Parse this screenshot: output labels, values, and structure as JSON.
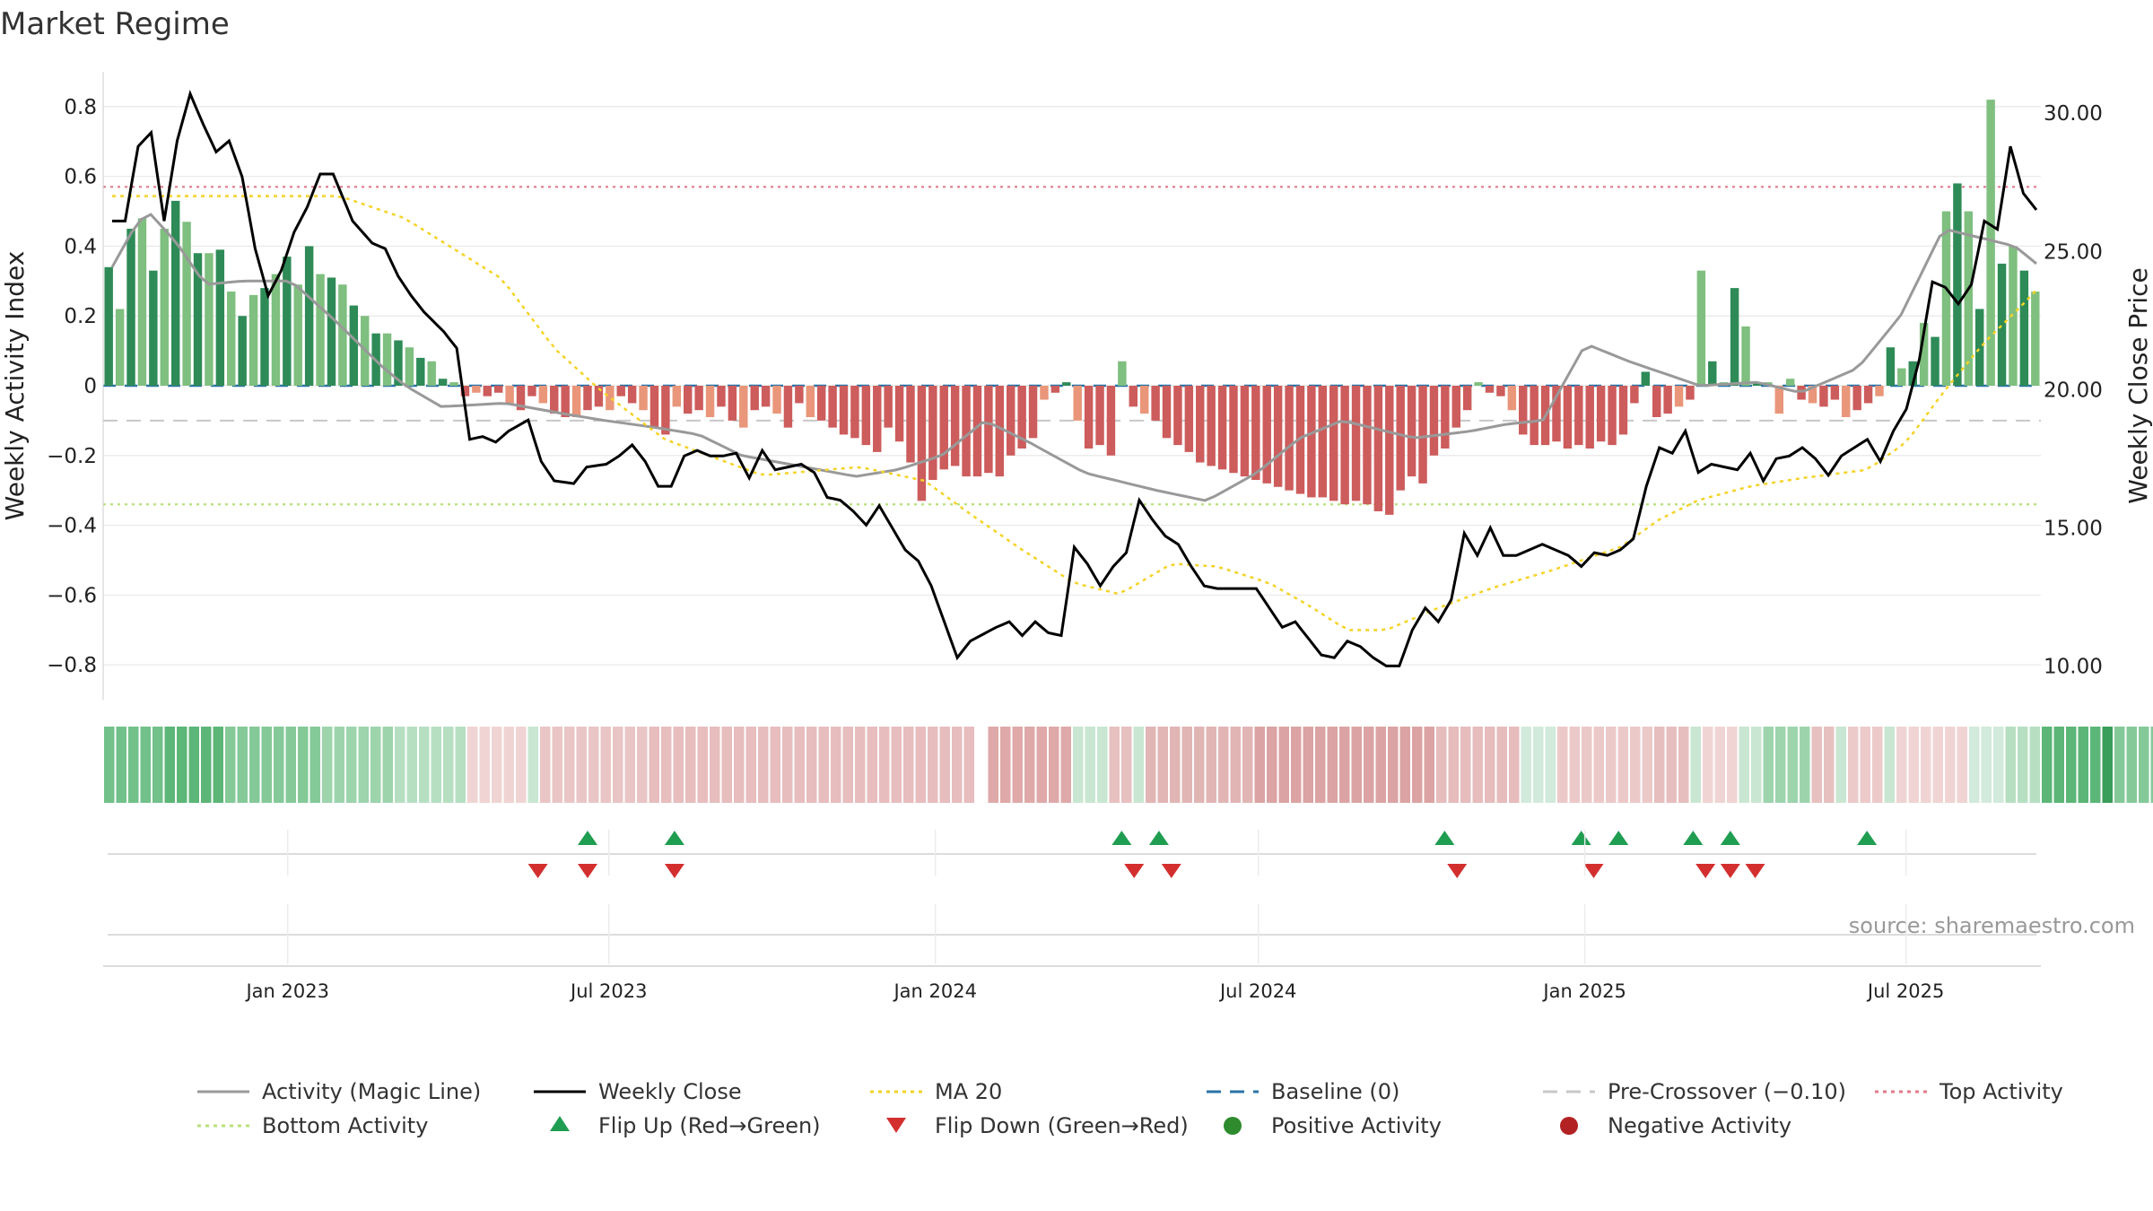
{
  "chart_data": {
    "type": "bar",
    "title": "Market Regime",
    "ylabel_left": "Weekly Activity Index",
    "ylabel_right": "Weekly Close Price",
    "source": "source: sharemaestro.com",
    "ylim_left": [
      -0.9,
      0.9
    ],
    "ylim_right": [
      8.78,
      31.5
    ],
    "left_ticks": [
      "0.8",
      "0.6",
      "0.4",
      "0.2",
      "0",
      "−0.2",
      "−0.4",
      "−0.6",
      "−0.8"
    ],
    "left_tick_values": [
      0.8,
      0.6,
      0.4,
      0.2,
      0,
      -0.2,
      -0.4,
      -0.6,
      -0.8
    ],
    "right_ticks": [
      "30.00",
      "25.00",
      "20.00",
      "15.00",
      "10.00"
    ],
    "right_tick_values": [
      30,
      25,
      20,
      15,
      10
    ],
    "x_range": [
      "2022-09-19",
      "2025-09-15"
    ],
    "date_ticks": [
      {
        "label": "Jan 2023",
        "date": "2023-01-01"
      },
      {
        "label": "Jul 2023",
        "date": "2023-07-01"
      },
      {
        "label": "Jan 2024",
        "date": "2024-01-01"
      },
      {
        "label": "Jul 2024",
        "date": "2024-07-01"
      },
      {
        "label": "Jan 2025",
        "date": "2025-01-01"
      },
      {
        "label": "Jul 2025",
        "date": "2025-07-01"
      }
    ],
    "top_activity": 0.57,
    "bottom_activity": -0.34,
    "pre_crossover": -0.1,
    "baseline": 0,
    "activity_keypoints": [
      [
        0,
        0.34
      ],
      [
        3,
        0.45
      ],
      [
        5,
        0.5
      ],
      [
        9,
        0.41
      ],
      [
        13,
        0.29
      ],
      [
        18,
        0.3
      ],
      [
        25,
        0.3
      ],
      [
        31,
        0.19
      ],
      [
        38,
        0.05
      ],
      [
        41,
        0.0
      ],
      [
        46,
        -0.06
      ],
      [
        55,
        -0.05
      ],
      [
        63,
        -0.08
      ],
      [
        69,
        -0.1
      ],
      [
        76,
        -0.12
      ],
      [
        82,
        -0.14
      ],
      [
        88,
        -0.2
      ],
      [
        96,
        -0.23
      ],
      [
        104,
        -0.26
      ],
      [
        110,
        -0.24
      ],
      [
        116,
        -0.2
      ],
      [
        122,
        -0.1
      ],
      [
        128,
        -0.16
      ],
      [
        136,
        -0.25
      ],
      [
        146,
        -0.3
      ],
      [
        153,
        -0.33
      ],
      [
        160,
        -0.25
      ],
      [
        166,
        -0.15
      ],
      [
        172,
        -0.1
      ],
      [
        176,
        -0.12
      ],
      [
        182,
        -0.15
      ],
      [
        190,
        -0.13
      ],
      [
        195,
        -0.11
      ],
      [
        200,
        -0.1
      ],
      [
        206,
        0.12
      ],
      [
        212,
        0.07
      ],
      [
        222,
        0.0
      ],
      [
        230,
        0.01
      ],
      [
        236,
        -0.02
      ],
      [
        244,
        0.05
      ],
      [
        250,
        0.2
      ],
      [
        256,
        0.45
      ],
      [
        266,
        0.4
      ],
      [
        269,
        0.35
      ]
    ],
    "close_keypoints": [
      [
        0,
        26.1
      ],
      [
        2,
        26.1
      ],
      [
        4,
        28.8
      ],
      [
        6,
        29.3
      ],
      [
        8,
        26.1
      ],
      [
        10,
        29
      ],
      [
        12,
        30.7
      ],
      [
        14,
        29.6
      ],
      [
        16,
        28.6
      ],
      [
        18,
        29
      ],
      [
        20,
        27.7
      ],
      [
        22,
        25.1
      ],
      [
        24,
        23.4
      ],
      [
        26,
        24.3
      ],
      [
        28,
        25.7
      ],
      [
        30,
        26.6
      ],
      [
        32,
        27.8
      ],
      [
        34,
        27.8
      ],
      [
        37,
        26.1
      ],
      [
        40,
        25.3
      ],
      [
        42,
        25.1
      ],
      [
        44,
        24.1
      ],
      [
        46,
        23.4
      ],
      [
        48,
        22.8
      ],
      [
        51,
        22.1
      ],
      [
        53,
        21.5
      ],
      [
        55,
        18.2
      ],
      [
        57,
        18.3
      ],
      [
        59,
        18.1
      ],
      [
        61,
        18.5
      ],
      [
        64,
        18.9
      ],
      [
        66,
        17.4
      ],
      [
        68,
        16.7
      ],
      [
        71,
        16.6
      ],
      [
        73,
        17.2
      ],
      [
        76,
        17.3
      ],
      [
        78,
        17.6
      ],
      [
        80,
        18
      ],
      [
        82,
        17.4
      ],
      [
        84,
        16.5
      ],
      [
        86,
        16.5
      ],
      [
        88,
        17.6
      ],
      [
        90,
        17.8
      ],
      [
        92,
        17.6
      ],
      [
        94,
        17.6
      ],
      [
        96,
        17.7
      ],
      [
        98,
        16.8
      ],
      [
        100,
        17.8
      ],
      [
        102,
        17.1
      ],
      [
        104,
        17.2
      ],
      [
        106,
        17.3
      ],
      [
        108,
        17
      ],
      [
        110,
        16.1
      ],
      [
        112,
        16
      ],
      [
        114,
        15.6
      ],
      [
        116,
        15.1
      ],
      [
        118,
        15.8
      ],
      [
        120,
        15
      ],
      [
        122,
        14.2
      ],
      [
        124,
        13.8
      ],
      [
        126,
        12.9
      ],
      [
        128,
        11.6
      ],
      [
        130,
        10.3
      ],
      [
        132,
        10.9
      ],
      [
        136,
        11.4
      ],
      [
        138,
        11.6
      ],
      [
        140,
        11.1
      ],
      [
        142,
        11.6
      ],
      [
        144,
        11.2
      ],
      [
        146,
        11.1
      ],
      [
        148,
        14.3
      ],
      [
        150,
        13.7
      ],
      [
        152,
        12.9
      ],
      [
        154,
        13.6
      ],
      [
        156,
        14.1
      ],
      [
        158,
        16
      ],
      [
        160,
        15.3
      ],
      [
        162,
        14.7
      ],
      [
        164,
        14.4
      ],
      [
        166,
        13.6
      ],
      [
        168,
        12.9
      ],
      [
        170,
        12.8
      ],
      [
        174,
        12.8
      ],
      [
        176,
        12.8
      ],
      [
        178,
        12.1
      ],
      [
        180,
        11.4
      ],
      [
        182,
        11.6
      ],
      [
        184,
        11
      ],
      [
        186,
        10.4
      ],
      [
        188,
        10.3
      ],
      [
        190,
        10.9
      ],
      [
        192,
        10.7
      ],
      [
        194,
        10.3
      ],
      [
        196,
        10
      ],
      [
        198,
        10
      ],
      [
        200,
        11.3
      ],
      [
        202,
        12.1
      ],
      [
        204,
        11.6
      ],
      [
        206,
        12.4
      ],
      [
        208,
        14.8
      ],
      [
        210,
        14
      ],
      [
        212,
        15
      ],
      [
        214,
        14
      ],
      [
        216,
        14
      ],
      [
        218,
        14.2
      ],
      [
        220,
        14.4
      ],
      [
        222,
        14.2
      ],
      [
        224,
        14
      ],
      [
        226,
        13.6
      ],
      [
        228,
        14.1
      ],
      [
        230,
        14
      ],
      [
        232,
        14.2
      ],
      [
        234,
        14.6
      ],
      [
        236,
        16.5
      ],
      [
        238,
        17.9
      ],
      [
        240,
        17.7
      ],
      [
        242,
        18.5
      ],
      [
        244,
        17
      ],
      [
        246,
        17.3
      ],
      [
        248,
        17.2
      ],
      [
        250,
        17.1
      ],
      [
        252,
        17.7
      ],
      [
        254,
        16.7
      ],
      [
        256,
        17.5
      ],
      [
        258,
        17.6
      ],
      [
        260,
        17.9
      ],
      [
        262,
        17.5
      ],
      [
        264,
        16.9
      ],
      [
        266,
        17.6
      ],
      [
        268,
        17.9
      ],
      [
        270,
        18.2
      ],
      [
        272,
        17.4
      ],
      [
        274,
        18.5
      ],
      [
        276,
        19.3
      ],
      [
        278,
        21.1
      ],
      [
        280,
        23.9
      ],
      [
        282,
        23.7
      ],
      [
        284,
        23.1
      ],
      [
        286,
        23.8
      ],
      [
        288,
        26.1
      ],
      [
        290,
        25.8
      ],
      [
        292,
        28.8
      ],
      [
        294,
        27.1
      ],
      [
        296,
        26.5
      ]
    ],
    "ma20_keypoints": [
      [
        0,
        27.0
      ],
      [
        20,
        27.0
      ],
      [
        35,
        27.0
      ],
      [
        45,
        26.2
      ],
      [
        60,
        24.0
      ],
      [
        68,
        21.5
      ],
      [
        75,
        20.0
      ],
      [
        85,
        18.2
      ],
      [
        100,
        16.9
      ],
      [
        115,
        17.2
      ],
      [
        125,
        16.7
      ],
      [
        132,
        15.5
      ],
      [
        140,
        14.2
      ],
      [
        148,
        13.0
      ],
      [
        155,
        12.6
      ],
      [
        163,
        13.7
      ],
      [
        170,
        13.6
      ],
      [
        178,
        13.0
      ],
      [
        184,
        12.2
      ],
      [
        190,
        11.3
      ],
      [
        196,
        11.3
      ],
      [
        204,
        12.1
      ],
      [
        212,
        12.8
      ],
      [
        222,
        13.5
      ],
      [
        232,
        14.3
      ],
      [
        238,
        15.3
      ],
      [
        244,
        16.0
      ],
      [
        252,
        16.5
      ],
      [
        260,
        16.8
      ],
      [
        270,
        17.1
      ],
      [
        276,
        18.1
      ],
      [
        282,
        20.0
      ],
      [
        288,
        21.7
      ],
      [
        294,
        23.1
      ],
      [
        296,
        23.6
      ]
    ],
    "activity": [
      0.34,
      0.22,
      0.45,
      0.48,
      0.33,
      0.45,
      0.53,
      0.47,
      0.38,
      0.38,
      0.39,
      0.27,
      0.2,
      0.26,
      0.28,
      0.32,
      0.37,
      0.29,
      0.4,
      0.32,
      0.31,
      0.29,
      0.23,
      0.2,
      0.15,
      0.15,
      0.13,
      0.11,
      0.08,
      0.07,
      0.02,
      0.01,
      -0.03,
      -0.02,
      -0.03,
      -0.02,
      -0.05,
      -0.07,
      -0.03,
      -0.05,
      -0.08,
      -0.09,
      -0.09,
      -0.07,
      -0.06,
      -0.07,
      -0.03,
      -0.05,
      -0.07,
      -0.12,
      -0.14,
      -0.06,
      -0.08,
      -0.07,
      -0.09,
      -0.06,
      -0.1,
      -0.12,
      -0.07,
      -0.06,
      -0.08,
      -0.12,
      -0.05,
      -0.09,
      -0.1,
      -0.12,
      -0.14,
      -0.15,
      -0.17,
      -0.19,
      -0.12,
      -0.16,
      -0.22,
      -0.33,
      -0.27,
      -0.24,
      -0.23,
      -0.26,
      -0.26,
      -0.25,
      -0.26,
      -0.2,
      -0.18,
      -0.15,
      -0.04,
      -0.02,
      0.01,
      -0.1,
      -0.18,
      -0.17,
      -0.2,
      0.07,
      -0.06,
      -0.08,
      -0.1,
      -0.15,
      -0.17,
      -0.19,
      -0.22,
      -0.23,
      -0.24,
      -0.25,
      -0.26,
      -0.27,
      -0.28,
      -0.29,
      -0.3,
      -0.31,
      -0.32,
      -0.32,
      -0.33,
      -0.34,
      -0.33,
      -0.34,
      -0.36,
      -0.37,
      -0.3,
      -0.26,
      -0.28,
      -0.2,
      -0.18,
      -0.12,
      -0.07,
      0.01,
      -0.02,
      -0.03,
      -0.07,
      -0.14,
      -0.17,
      -0.17,
      -0.16,
      -0.18,
      -0.17,
      -0.18,
      -0.16,
      -0.17,
      -0.14,
      -0.05,
      0.04,
      -0.09,
      -0.08,
      -0.06,
      -0.04,
      0.33,
      0.07,
      0.01,
      0.28,
      0.17,
      0.01,
      0.01,
      -0.08,
      0.02,
      -0.04,
      -0.05,
      -0.06,
      -0.04,
      -0.09,
      -0.07,
      -0.05,
      -0.03,
      0.11,
      0.05,
      0.07,
      0.18,
      0.14,
      0.5,
      0.58,
      0.5,
      0.22,
      0.82,
      0.35,
      0.4,
      0.33,
      0.27
    ],
    "strip_ncols": 160,
    "strip_runs": [
      [
        0,
        5,
        "#72c08a"
      ],
      [
        5,
        10,
        "#5cb677"
      ],
      [
        10,
        18,
        "#85c998"
      ],
      [
        18,
        24,
        "#9dd4ac"
      ],
      [
        24,
        30,
        "#b6dfc2"
      ],
      [
        30,
        35,
        "#f0d4d4"
      ],
      [
        35,
        36,
        "#c9e6d2"
      ],
      [
        36,
        45,
        "#e9c5c5"
      ],
      [
        45,
        72,
        "#e7bdbd"
      ],
      [
        72,
        73,
        "#ffffff"
      ],
      [
        73,
        80,
        "#dfa9a9"
      ],
      [
        80,
        83,
        "#c9e6d2"
      ],
      [
        83,
        85,
        "#e7c0c0"
      ],
      [
        85,
        86,
        "#c9e6d2"
      ],
      [
        86,
        95,
        "#e2b5b5"
      ],
      [
        95,
        110,
        "#dba3a3"
      ],
      [
        110,
        117,
        "#e6bcbc"
      ],
      [
        117,
        120,
        "#d2eadb"
      ],
      [
        120,
        128,
        "#ecc9c9"
      ],
      [
        128,
        131,
        "#e7bebe"
      ],
      [
        131,
        132,
        "#c9e6d2"
      ],
      [
        132,
        135,
        "#f0d4d4"
      ],
      [
        135,
        137,
        "#c9e6d2"
      ],
      [
        137,
        141,
        "#9dd4ac"
      ],
      [
        141,
        143,
        "#e7c0c0"
      ],
      [
        143,
        144,
        "#c9e6d2"
      ],
      [
        144,
        147,
        "#eccaca"
      ],
      [
        147,
        148,
        "#c9e6d2"
      ],
      [
        148,
        154,
        "#f0d4d4"
      ],
      [
        154,
        157,
        "#d2eadb"
      ],
      [
        157,
        160,
        "#b6dfc2"
      ],
      [
        160,
        165,
        "#5cb677"
      ],
      [
        165,
        166,
        "#3a9d5a"
      ],
      [
        166,
        171,
        "#85c998"
      ]
    ],
    "flips_up": [
      "2023-06-19",
      "2023-08-07",
      "2024-04-15",
      "2024-05-06",
      "2024-10-14",
      "2024-12-30",
      "2025-01-20",
      "2025-03-03",
      "2025-03-24",
      "2025-06-09"
    ],
    "flips_down": [
      "2023-05-22",
      "2023-06-19",
      "2023-08-07",
      "2024-04-22",
      "2024-05-13",
      "2024-10-21",
      "2025-01-06",
      "2025-03-10",
      "2025-03-24",
      "2025-04-07"
    ],
    "legend": [
      {
        "label": "Activity (Magic Line)",
        "style": "line",
        "color": "#999999"
      },
      {
        "label": "Weekly Close",
        "style": "line",
        "color": "#000000"
      },
      {
        "label": "MA 20",
        "style": "dotted",
        "color": "#f5d327"
      },
      {
        "label": "Baseline (0)",
        "style": "dashed",
        "color": "#2a73a8"
      },
      {
        "label": "Pre-Crossover (−0.10)",
        "style": "dashed",
        "color": "#c8c8c8"
      },
      {
        "label": "Top Activity",
        "style": "dotted",
        "color": "#e07b8a"
      },
      {
        "label": "Bottom Activity",
        "style": "dotted",
        "color": "#b7e07a"
      },
      {
        "label": "Flip Up (Red→Green)",
        "style": "triangle-up",
        "color": "#1f9d50"
      },
      {
        "label": "Flip Down (Green→Red)",
        "style": "triangle-down",
        "color": "#d32f2f"
      },
      {
        "label": "Positive Activity",
        "style": "circle",
        "color": "#2e8b2e"
      },
      {
        "label": "Negative Activity",
        "style": "circle",
        "color": "#b22222"
      }
    ],
    "colors": {
      "bar_dark_green": "#2e8b57",
      "bar_light_green": "#7fbf7f",
      "bar_dark_red": "#cd5c5c",
      "bar_light_red": "#e9967a",
      "gridline": "#e8e8e8"
    }
  }
}
